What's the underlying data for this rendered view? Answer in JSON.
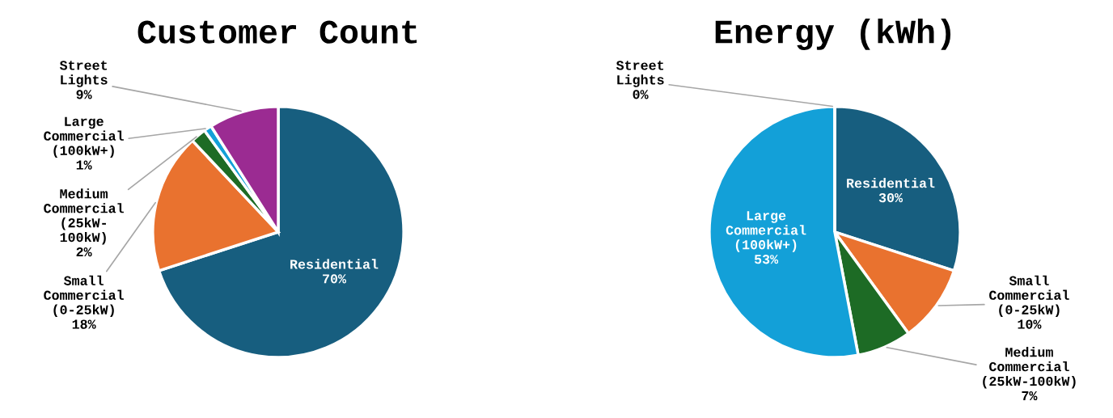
{
  "chart_data": [
    {
      "type": "pie",
      "title": "Customer Count",
      "categories": [
        "Residential",
        "Small Commercial (0-25kW)",
        "Medium Commercial (25kW- 100kW)",
        "Large Commercial (100kW+)",
        "Street Lights"
      ],
      "values": [
        70,
        18,
        2,
        1,
        9
      ],
      "colors": [
        "#175e7f",
        "#e9722f",
        "#1d6b25",
        "#13a0d8",
        "#9b2b92"
      ],
      "value_labels": [
        "70%",
        "18%",
        "2%",
        "1%",
        "9%"
      ]
    },
    {
      "type": "pie",
      "title": "Energy (kWh)",
      "categories": [
        "Residential",
        "Small Commercial (0-25kW)",
        "Medium Commercial (25kW-100kW)",
        "Large Commercial (100kW+)",
        "Street Lights"
      ],
      "values": [
        30,
        10,
        7,
        53,
        0
      ],
      "colors": [
        "#175e7f",
        "#e9722f",
        "#1d6b25",
        "#13a0d8",
        "#9b2b92"
      ],
      "value_labels": [
        "30%",
        "10%",
        "7%",
        "53%",
        "0%"
      ]
    }
  ]
}
